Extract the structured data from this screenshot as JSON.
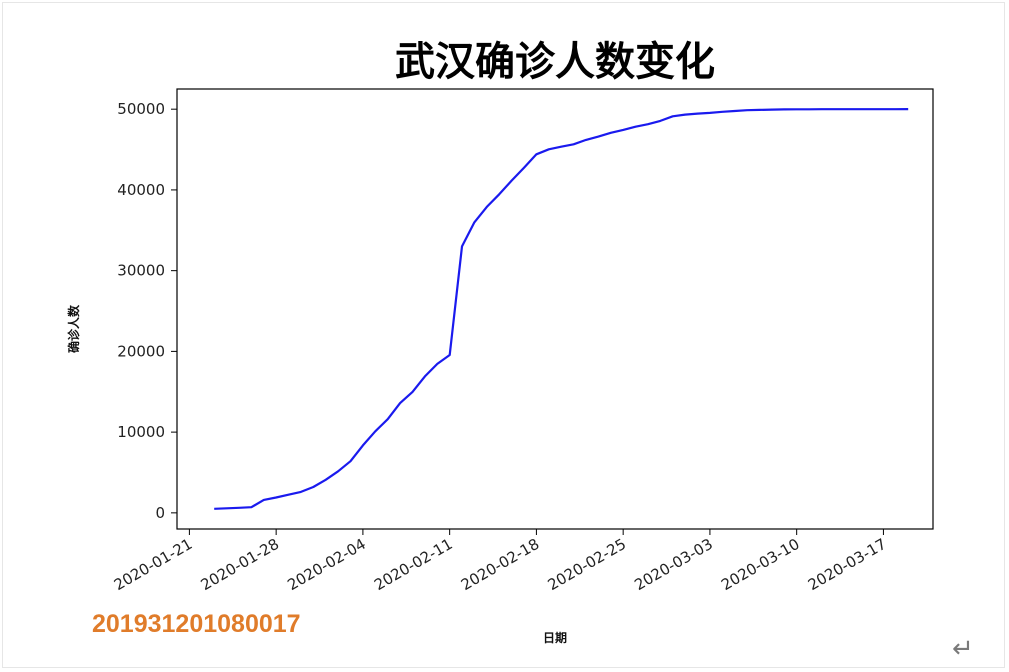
{
  "watermark": "201931201080017",
  "return_glyph": "↵",
  "chart_data": {
    "type": "line",
    "title": "武汉确诊人数变化",
    "xlabel": "日期",
    "ylabel": "确诊人数",
    "line_color": "#1a1aee",
    "grid": false,
    "xlim": [
      "2020-01-20",
      "2020-03-21"
    ],
    "ylim": [
      -2000,
      52500
    ],
    "x_ticks": [
      "2020-01-21",
      "2020-01-28",
      "2020-02-04",
      "2020-02-11",
      "2020-02-18",
      "2020-02-25",
      "2020-03-03",
      "2020-03-10",
      "2020-03-17"
    ],
    "y_ticks": [
      0,
      10000,
      20000,
      30000,
      40000,
      50000
    ],
    "y_tick_labels": [
      "0",
      "10000",
      "20000",
      "30000",
      "40000",
      "50000"
    ],
    "series": [
      {
        "x": [
          "2020-01-23",
          "2020-01-24",
          "2020-01-25",
          "2020-01-26",
          "2020-01-27",
          "2020-01-28",
          "2020-01-29",
          "2020-01-30",
          "2020-01-31",
          "2020-02-01",
          "2020-02-02",
          "2020-02-03",
          "2020-02-04",
          "2020-02-05",
          "2020-02-06",
          "2020-02-07",
          "2020-02-08",
          "2020-02-09",
          "2020-02-10",
          "2020-02-11",
          "2020-02-12",
          "2020-02-13",
          "2020-02-14",
          "2020-02-15",
          "2020-02-16",
          "2020-02-17",
          "2020-02-18",
          "2020-02-19",
          "2020-02-20",
          "2020-02-21",
          "2020-02-22",
          "2020-02-23",
          "2020-02-24",
          "2020-02-25",
          "2020-02-26",
          "2020-02-27",
          "2020-02-28",
          "2020-02-29",
          "2020-03-01",
          "2020-03-02",
          "2020-03-03",
          "2020-03-04",
          "2020-03-05",
          "2020-03-06",
          "2020-03-07",
          "2020-03-08",
          "2020-03-09",
          "2020-03-10",
          "2020-03-11",
          "2020-03-12",
          "2020-03-13",
          "2020-03-14",
          "2020-03-15",
          "2020-03-16",
          "2020-03-17",
          "2020-03-18",
          "2020-03-19"
        ],
        "y": [
          500,
          570,
          620,
          700,
          1600,
          1900,
          2250,
          2600,
          3200,
          4100,
          5150,
          6400,
          8350,
          10100,
          11600,
          13600,
          14980,
          16900,
          18450,
          19550,
          33000,
          35990,
          37900,
          39460,
          41150,
          42750,
          44410,
          45030,
          45350,
          45650,
          46200,
          46600,
          47070,
          47440,
          47830,
          48140,
          48550,
          49120,
          49330,
          49450,
          49540,
          49670,
          49780,
          49870,
          49910,
          49950,
          49970,
          49980,
          49990,
          50000,
          50000,
          50000,
          50000,
          50000,
          50000,
          50000,
          50010
        ]
      }
    ]
  }
}
